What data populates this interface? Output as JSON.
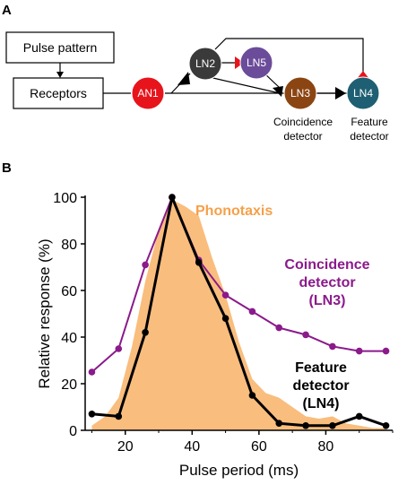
{
  "panel_a": {
    "letter": "A",
    "pulse_box": "Pulse pattern",
    "receptors_box": "Receptors",
    "nodes": {
      "an1": {
        "label": "AN1",
        "color": "#e8141b"
      },
      "ln2": {
        "label": "LN2",
        "color": "#3a3a3a"
      },
      "ln5": {
        "label": "LN5",
        "color": "#6b4c9a"
      },
      "ln3": {
        "label": "LN3",
        "color": "#8b4513"
      },
      "ln4": {
        "label": "LN4",
        "color": "#1f5f73"
      }
    },
    "ln3_caption": [
      "Coincidence",
      "detector"
    ],
    "ln4_caption": [
      "Feature",
      "detector"
    ],
    "excitatory_color": "#000000",
    "inhibitory_color": "#e8141b"
  },
  "panel_b": {
    "letter": "B",
    "annotations": {
      "phonotaxis": "Phonotaxis",
      "coincidence": [
        "Coincidence",
        "detector",
        "(LN3)"
      ],
      "feature": [
        "Feature",
        "detector",
        "(LN4)"
      ]
    },
    "colors": {
      "phonotaxis": "#f9bd7e",
      "phonotaxis_text": "#f5a04a",
      "coincidence": "#8b1a8b",
      "feature": "#000000"
    }
  },
  "chart_data": {
    "type": "line",
    "xlabel": "Pulse period (ms)",
    "ylabel": "Relative response (%)",
    "xlim": [
      8,
      100
    ],
    "ylim": [
      0,
      100
    ],
    "xticks": [
      20,
      40,
      60,
      80
    ],
    "yticks": [
      0,
      20,
      40,
      60,
      80,
      100
    ],
    "grid": false,
    "area": {
      "name": "Phonotaxis",
      "x": [
        10,
        14,
        18,
        22,
        26,
        30,
        34,
        38,
        42,
        46,
        50,
        54,
        58,
        62,
        66,
        70,
        74,
        78,
        82,
        86,
        90,
        94,
        98
      ],
      "y": [
        2,
        6,
        14,
        36,
        64,
        86,
        99,
        96,
        92,
        74,
        58,
        38,
        22,
        16,
        14,
        10,
        6,
        5,
        6,
        3,
        2,
        1,
        1
      ]
    },
    "series": [
      {
        "name": "Coincidence detector (LN3)",
        "x": [
          10,
          18,
          26,
          34,
          42,
          50,
          58,
          66,
          74,
          82,
          90,
          98
        ],
        "y": [
          25,
          35,
          71,
          100,
          73,
          58,
          51,
          44,
          41,
          36,
          34,
          34
        ]
      },
      {
        "name": "Feature detector (LN4)",
        "x": [
          10,
          18,
          26,
          34,
          42,
          50,
          58,
          66,
          74,
          82,
          90,
          98
        ],
        "y": [
          7,
          6,
          42,
          100,
          72,
          48,
          15,
          3,
          2,
          2,
          6,
          2
        ]
      }
    ]
  }
}
